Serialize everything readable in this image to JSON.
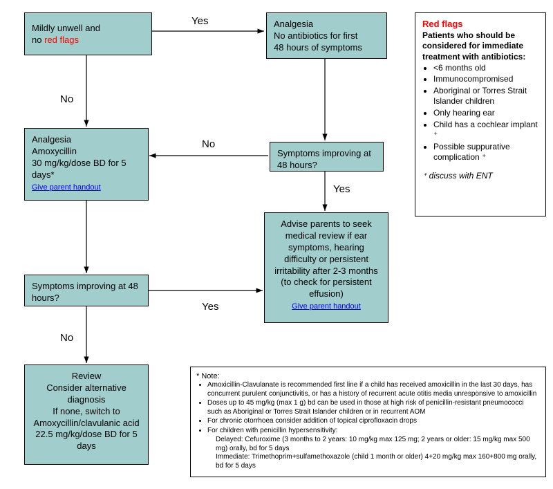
{
  "nodes": {
    "start": {
      "line1": "Mildly unwell and",
      "line2_prefix": "no ",
      "line2_red": "red flags"
    },
    "analgesia_no_ab": {
      "line1": "Analgesia",
      "line2": "No antibiotics for first",
      "line3": "48 hours of symptoms"
    },
    "amoxy": {
      "line1": "Analgesia",
      "line2": "Amoxycillin",
      "line3": "30 mg/kg/dose BD for 5",
      "line4": "days*",
      "link": "Give parent handout"
    },
    "symptoms48_right": "Symptoms improving at 48 hours?",
    "symptoms48_left": "Symptoms improving at 48 hours?",
    "advise": {
      "text": "Advise parents to seek medical review if ear symptoms, hearing difficulty or persistent irritability after 2-3 months (to check for persistent effusion)",
      "link": "Give parent handout"
    },
    "review": {
      "line1": "Review",
      "line2": "Consider alternative diagnosis",
      "line3": "If none, switch to Amoxycillin/clavulanic acid 22.5 mg/kg/dose BD for 5 days"
    }
  },
  "labels": {
    "yes1": "Yes",
    "no1": "No",
    "no2": "No",
    "yes2": "Yes",
    "yes3": "Yes",
    "no3": "No"
  },
  "redflags": {
    "title": "Red flags",
    "subtitle": "Patients who should be considered for immediate treatment with antibiotics:",
    "items": [
      "<6 months old",
      "Immunocompromised",
      "Aboriginal or Torres Strait Islander children",
      "Only hearing ear",
      "Child has a cochlear implant ⁺",
      "Possible suppurative complication ⁺"
    ],
    "footnote": "⁺ discuss with ENT"
  },
  "note": {
    "title": "* Note:",
    "items": [
      "Amoxicillin-Clavulanate is recommended first line if a child has received amoxicillin in the last 30 days, has concurrent purulent conjunctivitis, or has a history of recurrent acute otitis media unresponsive to amoxicillin",
      "Doses up to 45 mg/kg (max 1 g) bd can be used in those at high risk of penicillin-resistant pneumococci such as Aboriginal or Torres Strait Islander children or in recurrent AOM",
      "For chronic otorrhoea consider addition of topical ciprofloxacin drops",
      "For children with penicillin hypersensitivity:"
    ],
    "sub": [
      "Delayed: Cefuroxime (3 months to 2 years: 10 mg/kg max 125 mg; 2 years or older: 15 mg/kg max 500 mg) orally, bd for 5 days",
      "Immediate: Trimethoprim+sulfamethoxazole (child 1 month or older) 4+20 mg/kg max 160+800 mg orally, bd for 5 days"
    ]
  },
  "colors": {
    "teal": "#a2cdcd",
    "red": "#ff0000",
    "link": "#0000ee",
    "border": "#000000"
  }
}
